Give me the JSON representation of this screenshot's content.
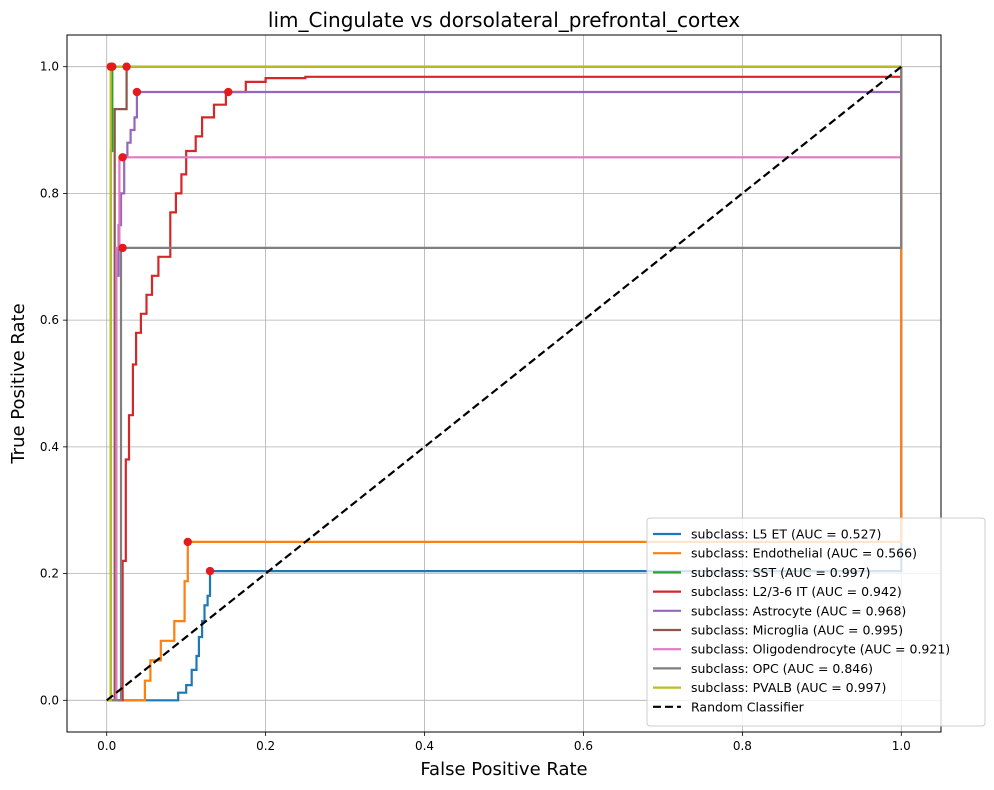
{
  "chart_data": {
    "type": "line",
    "title": "lim_Cingulate vs dorsolateral_prefrontal_cortex",
    "xlabel": "False Positive Rate",
    "ylabel": "True Positive Rate",
    "xlim": [
      -0.05,
      1.05
    ],
    "ylim": [
      -0.05,
      1.05
    ],
    "xticks": [
      "0.0",
      "0.2",
      "0.4",
      "0.6",
      "0.8",
      "1.0"
    ],
    "yticks": [
      "0.0",
      "0.2",
      "0.4",
      "0.6",
      "0.8",
      "1.0"
    ],
    "grid": true,
    "legend_position": "lower-right",
    "series": [
      {
        "name": "subclass: L5 ET (AUC = 0.527)",
        "color": "#1f77b4",
        "points": [
          [
            0,
            0
          ],
          [
            0.09,
            0
          ],
          [
            0.09,
            0.012
          ],
          [
            0.1,
            0.012
          ],
          [
            0.1,
            0.024
          ],
          [
            0.107,
            0.024
          ],
          [
            0.107,
            0.048
          ],
          [
            0.113,
            0.048
          ],
          [
            0.113,
            0.07
          ],
          [
            0.116,
            0.07
          ],
          [
            0.116,
            0.1
          ],
          [
            0.12,
            0.1
          ],
          [
            0.12,
            0.125
          ],
          [
            0.123,
            0.125
          ],
          [
            0.123,
            0.15
          ],
          [
            0.127,
            0.15
          ],
          [
            0.127,
            0.165
          ],
          [
            0.13,
            0.165
          ],
          [
            0.13,
            0.204
          ],
          [
            1,
            0.204
          ],
          [
            1,
            1
          ]
        ],
        "marker": [
          0.13,
          0.204
        ]
      },
      {
        "name": "subclass: Endothelial (AUC = 0.566)",
        "color": "#ff7f0e",
        "points": [
          [
            0,
            0
          ],
          [
            0.048,
            0
          ],
          [
            0.048,
            0.031
          ],
          [
            0.055,
            0.031
          ],
          [
            0.055,
            0.063
          ],
          [
            0.068,
            0.063
          ],
          [
            0.068,
            0.094
          ],
          [
            0.085,
            0.094
          ],
          [
            0.085,
            0.125
          ],
          [
            0.098,
            0.125
          ],
          [
            0.098,
            0.188
          ],
          [
            0.102,
            0.188
          ],
          [
            0.102,
            0.25
          ],
          [
            1,
            0.25
          ],
          [
            1,
            1
          ]
        ],
        "marker": [
          0.102,
          0.25
        ]
      },
      {
        "name": "subclass: SST (AUC = 0.997)",
        "color": "#2ca02c",
        "points": [
          [
            0,
            0
          ],
          [
            0.005,
            0
          ],
          [
            0.005,
            0.867
          ],
          [
            0.007,
            0.867
          ],
          [
            0.007,
            1.0
          ],
          [
            1,
            1.0
          ]
        ],
        "marker": [
          0.007,
          1.0
        ]
      },
      {
        "name": "subclass: L2/3-6 IT (AUC = 0.942)",
        "color": "#d62728",
        "points": [
          [
            0,
            0
          ],
          [
            0.02,
            0
          ],
          [
            0.02,
            0.22
          ],
          [
            0.024,
            0.22
          ],
          [
            0.024,
            0.38
          ],
          [
            0.028,
            0.38
          ],
          [
            0.028,
            0.45
          ],
          [
            0.033,
            0.45
          ],
          [
            0.033,
            0.53
          ],
          [
            0.037,
            0.53
          ],
          [
            0.037,
            0.58
          ],
          [
            0.043,
            0.58
          ],
          [
            0.043,
            0.61
          ],
          [
            0.05,
            0.61
          ],
          [
            0.05,
            0.64
          ],
          [
            0.057,
            0.64
          ],
          [
            0.057,
            0.67
          ],
          [
            0.065,
            0.67
          ],
          [
            0.065,
            0.7
          ],
          [
            0.08,
            0.7
          ],
          [
            0.08,
            0.71
          ],
          [
            0.08,
            0.77
          ],
          [
            0.087,
            0.77
          ],
          [
            0.087,
            0.8
          ],
          [
            0.094,
            0.8
          ],
          [
            0.094,
            0.83
          ],
          [
            0.1,
            0.83
          ],
          [
            0.1,
            0.867
          ],
          [
            0.112,
            0.867
          ],
          [
            0.112,
            0.89
          ],
          [
            0.12,
            0.89
          ],
          [
            0.12,
            0.92
          ],
          [
            0.135,
            0.92
          ],
          [
            0.135,
            0.94
          ],
          [
            0.15,
            0.94
          ],
          [
            0.15,
            0.96
          ],
          [
            0.175,
            0.96
          ],
          [
            0.175,
            0.976
          ],
          [
            0.2,
            0.976
          ],
          [
            0.2,
            0.982
          ],
          [
            0.25,
            0.982
          ],
          [
            0.25,
            0.984
          ],
          [
            1,
            0.984
          ],
          [
            1,
            1
          ]
        ],
        "marker": [
          0.153,
          0.96
        ]
      },
      {
        "name": "subclass: Astrocyte (AUC = 0.968)",
        "color": "#9467bd",
        "points": [
          [
            0,
            0
          ],
          [
            0.012,
            0
          ],
          [
            0.012,
            0.67
          ],
          [
            0.015,
            0.67
          ],
          [
            0.015,
            0.75
          ],
          [
            0.018,
            0.75
          ],
          [
            0.018,
            0.8
          ],
          [
            0.022,
            0.8
          ],
          [
            0.022,
            0.86
          ],
          [
            0.026,
            0.86
          ],
          [
            0.026,
            0.88
          ],
          [
            0.03,
            0.88
          ],
          [
            0.03,
            0.9
          ],
          [
            0.035,
            0.9
          ],
          [
            0.035,
            0.92
          ],
          [
            0.038,
            0.92
          ],
          [
            0.038,
            0.96
          ],
          [
            1,
            0.96
          ],
          [
            1,
            1
          ]
        ],
        "marker": [
          0.038,
          0.96
        ]
      },
      {
        "name": "subclass: Microglia (AUC = 0.995)",
        "color": "#8c564b",
        "points": [
          [
            0,
            0
          ],
          [
            0.01,
            0
          ],
          [
            0.01,
            0.933
          ],
          [
            0.025,
            0.933
          ],
          [
            0.025,
            1.0
          ],
          [
            1,
            1.0
          ]
        ],
        "marker": [
          0.025,
          1.0
        ]
      },
      {
        "name": "subclass: Oligodendrocyte (AUC = 0.921)",
        "color": "#e377c2",
        "points": [
          [
            0,
            0
          ],
          [
            0.012,
            0
          ],
          [
            0.012,
            0.714
          ],
          [
            0.016,
            0.714
          ],
          [
            0.016,
            0.857
          ],
          [
            1,
            0.857
          ],
          [
            1,
            1
          ]
        ],
        "marker": [
          0.02,
          0.857
        ]
      },
      {
        "name": "subclass: OPC (AUC = 0.846)",
        "color": "#7f7f7f",
        "points": [
          [
            0,
            0
          ],
          [
            0.018,
            0
          ],
          [
            0.018,
            0.714
          ],
          [
            1,
            0.714
          ],
          [
            1,
            1
          ]
        ],
        "marker": [
          0.02,
          0.714
        ]
      },
      {
        "name": "subclass: PVALB (AUC = 0.997)",
        "color": "#bcbd22",
        "points": [
          [
            0,
            0
          ],
          [
            0.005,
            0
          ],
          [
            0.005,
            1.0
          ],
          [
            1,
            1.0
          ]
        ],
        "marker": [
          0.005,
          1.0
        ]
      }
    ],
    "reference_line": {
      "name": "Random Classifier",
      "color": "#000000",
      "points": [
        [
          0,
          0
        ],
        [
          1,
          1
        ]
      ]
    },
    "marker_color": "#e41a1c"
  }
}
